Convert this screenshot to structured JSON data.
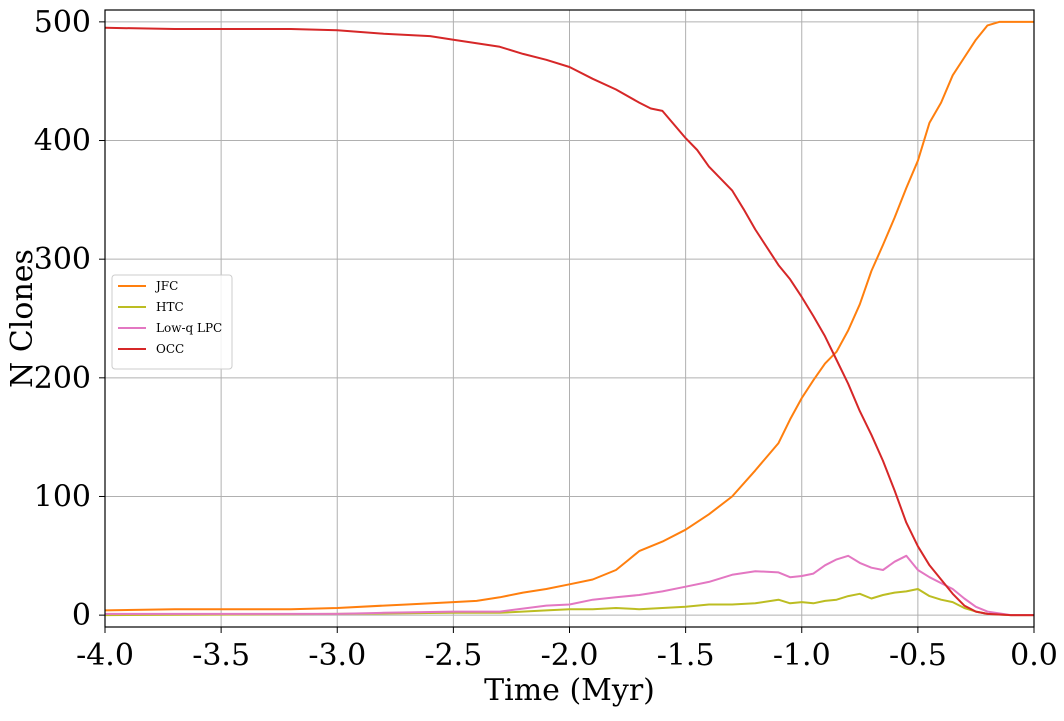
{
  "chart_data": {
    "type": "line",
    "title": "",
    "xlabel": "Time (Myr)",
    "ylabel": "N Clones",
    "xlim": [
      -4.0,
      0.0
    ],
    "ylim": [
      -10,
      510
    ],
    "xticks": [
      -4.0,
      -3.5,
      -3.0,
      -2.5,
      -2.0,
      -1.5,
      -1.0,
      -0.5,
      0.0
    ],
    "xtick_labels": [
      "-4.0",
      "-3.5",
      "-3.0",
      "-2.5",
      "-2.0",
      "-1.5",
      "-1.0",
      "-0.5",
      "0.0"
    ],
    "yticks": [
      0,
      100,
      200,
      300,
      400,
      500
    ],
    "ytick_labels": [
      "0",
      "100",
      "200",
      "300",
      "400",
      "500"
    ],
    "grid": true,
    "legend_position": "center-left",
    "series": [
      {
        "name": "JFC",
        "color": "#ff7f0e",
        "x": [
          -4.0,
          -3.7,
          -3.2,
          -3.0,
          -2.8,
          -2.7,
          -2.5,
          -2.4,
          -2.3,
          -2.2,
          -2.1,
          -2.0,
          -1.9,
          -1.8,
          -1.75,
          -1.7,
          -1.6,
          -1.5,
          -1.4,
          -1.3,
          -1.2,
          -1.1,
          -1.05,
          -1.0,
          -0.95,
          -0.9,
          -0.85,
          -0.8,
          -0.75,
          -0.7,
          -0.65,
          -0.6,
          -0.55,
          -0.5,
          -0.45,
          -0.4,
          -0.35,
          -0.3,
          -0.25,
          -0.2,
          -0.15,
          -0.1,
          0.0
        ],
        "values": [
          4,
          5,
          5,
          6,
          8,
          9,
          11,
          12,
          15,
          19,
          22,
          26,
          30,
          38,
          46,
          54,
          62,
          72,
          85,
          100,
          122,
          145,
          165,
          183,
          198,
          212,
          222,
          240,
          262,
          290,
          312,
          335,
          360,
          383,
          415,
          432,
          455,
          470,
          485,
          497,
          500,
          500,
          500
        ]
      },
      {
        "name": "HTC",
        "color": "#bcbd22",
        "x": [
          -4.0,
          -3.0,
          -2.5,
          -2.3,
          -2.1,
          -2.0,
          -1.9,
          -1.8,
          -1.7,
          -1.6,
          -1.5,
          -1.4,
          -1.3,
          -1.2,
          -1.1,
          -1.05,
          -1.0,
          -0.95,
          -0.9,
          -0.85,
          -0.8,
          -0.75,
          -0.7,
          -0.65,
          -0.6,
          -0.55,
          -0.5,
          -0.45,
          -0.4,
          -0.35,
          -0.3,
          -0.25,
          -0.2,
          -0.1,
          0.0
        ],
        "values": [
          0,
          1,
          2,
          2,
          4,
          5,
          5,
          6,
          5,
          6,
          7,
          9,
          9,
          10,
          13,
          10,
          11,
          10,
          12,
          13,
          16,
          18,
          14,
          17,
          19,
          20,
          22,
          16,
          13,
          11,
          6,
          3,
          1,
          0,
          0
        ]
      },
      {
        "name": "Low-q LPC",
        "color": "#e377c2",
        "x": [
          -4.0,
          -3.0,
          -2.8,
          -2.5,
          -2.3,
          -2.1,
          -2.0,
          -1.9,
          -1.8,
          -1.7,
          -1.6,
          -1.5,
          -1.4,
          -1.3,
          -1.2,
          -1.1,
          -1.05,
          -1.0,
          -0.95,
          -0.9,
          -0.85,
          -0.8,
          -0.75,
          -0.7,
          -0.65,
          -0.6,
          -0.55,
          -0.5,
          -0.45,
          -0.4,
          -0.35,
          -0.3,
          -0.25,
          -0.2,
          -0.1,
          0.0
        ],
        "values": [
          1,
          1,
          2,
          3,
          3,
          8,
          9,
          13,
          15,
          17,
          20,
          24,
          28,
          34,
          37,
          36,
          32,
          33,
          35,
          42,
          47,
          50,
          44,
          40,
          38,
          45,
          50,
          38,
          32,
          27,
          22,
          14,
          7,
          3,
          0,
          0
        ]
      },
      {
        "name": "OCC",
        "color": "#d62728",
        "x": [
          -4.0,
          -3.7,
          -3.2,
          -3.0,
          -2.8,
          -2.6,
          -2.5,
          -2.4,
          -2.3,
          -2.2,
          -2.1,
          -2.0,
          -1.9,
          -1.8,
          -1.7,
          -1.65,
          -1.6,
          -1.5,
          -1.45,
          -1.4,
          -1.3,
          -1.25,
          -1.2,
          -1.1,
          -1.05,
          -1.0,
          -0.95,
          -0.9,
          -0.85,
          -0.8,
          -0.75,
          -0.7,
          -0.65,
          -0.6,
          -0.55,
          -0.5,
          -0.45,
          -0.4,
          -0.35,
          -0.3,
          -0.25,
          -0.2,
          -0.1,
          0.0
        ],
        "values": [
          495,
          494,
          494,
          493,
          490,
          488,
          485,
          482,
          479,
          473,
          468,
          462,
          452,
          443,
          432,
          427,
          425,
          402,
          392,
          378,
          358,
          342,
          325,
          295,
          283,
          268,
          252,
          235,
          215,
          195,
          172,
          152,
          130,
          105,
          78,
          58,
          42,
          30,
          18,
          8,
          3,
          1,
          0,
          0
        ]
      }
    ]
  }
}
